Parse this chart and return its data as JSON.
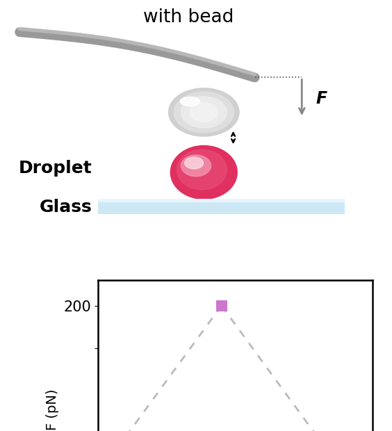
{
  "title_text": "with bead",
  "droplet_label": "Droplet",
  "glass_label": "Glass",
  "force_label": "F",
  "ylabel_bottom": "F (pN)",
  "ytick_200": 200,
  "marker_color": "#cc77cc",
  "dashed_line_color": "#bbbbbb",
  "background_color": "#ffffff",
  "cantilever_color": "#999999",
  "glass_color_top": "#cce8f5",
  "glass_color_bottom": "#a8d0ea",
  "arrow_color": "#888888",
  "double_arrow_color": "#111111",
  "bead_base_color": "#d8d8d8",
  "droplet_base_color": "#e03060",
  "droplet_light_color": "#f090a8"
}
